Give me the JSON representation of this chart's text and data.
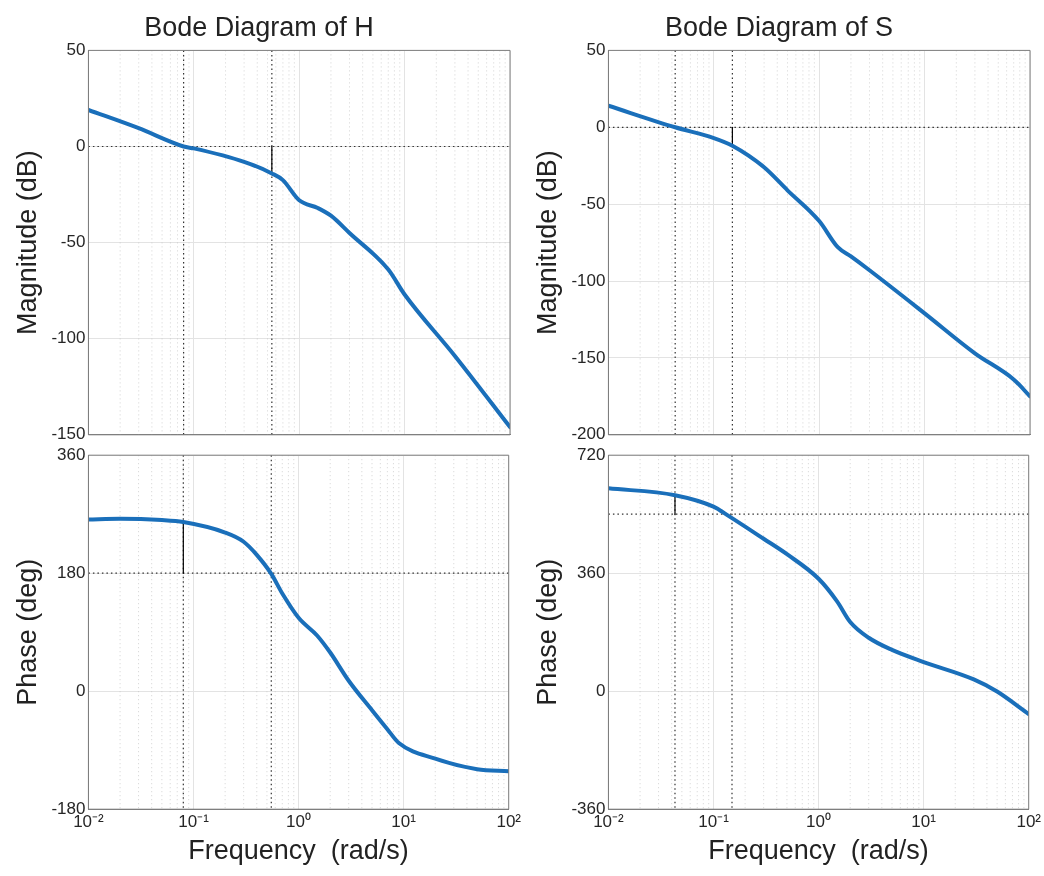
{
  "chart_data": [
    {
      "type": "line",
      "title": "Bode Diagram of H",
      "ylabel": "Magnitude (dB)",
      "log": "x",
      "grid": true,
      "marker": "none",
      "line_style": "solid",
      "tick_labels": "y",
      "xlim": [
        0.01,
        100
      ],
      "xticks": [
        {
          "value": 0.01,
          "label": null
        },
        {
          "value": 0.1,
          "label": null
        },
        {
          "value": 1,
          "label": null
        },
        {
          "value": 10,
          "label": null
        },
        {
          "value": 100,
          "label": null
        }
      ],
      "ylim": [
        -150,
        50
      ],
      "yticks": [
        -150,
        -100,
        -50,
        0,
        50
      ],
      "series": [
        {
          "color": "#1a6fba",
          "x": [
            0.01,
            0.03,
            0.08,
            0.1,
            0.3,
            0.55,
            0.7,
            1,
            1.5,
            2,
            3,
            7,
            10,
            30,
            100
          ],
          "values": [
            19,
            9.5,
            0,
            -1,
            -8,
            -14,
            -17.5,
            -28,
            -32,
            -36,
            -45,
            -64,
            -77,
            -109,
            -146
          ]
        },
        {
          "color": "#000000",
          "x": [
            0.55,
            0.55
          ],
          "values": [
            0,
            -14
          ]
        }
      ],
      "ref_lines": [
        {
          "axis": "y",
          "value": 0,
          "line_style": "dotted",
          "color": "#333333"
        },
        {
          "axis": "x",
          "value": 0.08,
          "line_style": "dotted",
          "color": "#333333"
        },
        {
          "axis": "x",
          "value": 0.55,
          "line_style": "dotted",
          "color": "#333333"
        }
      ]
    },
    {
      "type": "line",
      "title": "Bode Diagram of S",
      "ylabel": "Magnitude (dB)",
      "log": "x",
      "grid": true,
      "marker": "none",
      "line_style": "solid",
      "tick_labels": "y",
      "xlim": [
        0.01,
        100
      ],
      "xticks": [
        {
          "value": 0.01,
          "label": null
        },
        {
          "value": 0.1,
          "label": null
        },
        {
          "value": 1,
          "label": null
        },
        {
          "value": 10,
          "label": null
        },
        {
          "value": 100,
          "label": null
        }
      ],
      "ylim": [
        -200,
        50
      ],
      "yticks": [
        -200,
        -150,
        -100,
        -50,
        0,
        50
      ],
      "series": [
        {
          "color": "#1a6fba",
          "x": [
            0.01,
            0.043,
            0.1,
            0.15,
            0.3,
            0.5,
            1,
            1.5,
            2,
            3,
            10,
            30,
            70,
            100
          ],
          "values": [
            14,
            0,
            -7,
            -12,
            -26,
            -41,
            -61,
            -78,
            -84,
            -93,
            -121,
            -147,
            -164,
            -175
          ]
        },
        {
          "color": "#000000",
          "x": [
            0.15,
            0.15
          ],
          "values": [
            0,
            -12
          ]
        }
      ],
      "ref_lines": [
        {
          "axis": "y",
          "value": 0,
          "line_style": "dotted",
          "color": "#333333"
        },
        {
          "axis": "x",
          "value": 0.043,
          "line_style": "dotted",
          "color": "#333333"
        },
        {
          "axis": "x",
          "value": 0.15,
          "line_style": "dotted",
          "color": "#333333"
        }
      ]
    },
    {
      "type": "line",
      "xlabel": "Frequency  (rad/s)",
      "ylabel": "Phase (deg)",
      "log": "x",
      "grid": true,
      "marker": "none",
      "line_style": "solid",
      "xlim": [
        0.01,
        100
      ],
      "xticks": [
        {
          "value": 0.01,
          "label": "10⁻²"
        },
        {
          "value": 0.1,
          "label": "10⁻¹"
        },
        {
          "value": 1,
          "label": "10⁰"
        },
        {
          "value": 10,
          "label": "10¹"
        },
        {
          "value": 100,
          "label": "10²"
        }
      ],
      "ylim": [
        -180,
        360
      ],
      "yticks": [
        -180,
        0,
        180,
        360
      ],
      "series": [
        {
          "color": "#1a6fba",
          "x": [
            0.01,
            0.02,
            0.05,
            0.08,
            0.2,
            0.3,
            0.4,
            0.55,
            0.7,
            1,
            1.5,
            2,
            3,
            5,
            7,
            9,
            20,
            50,
            100
          ],
          "values": [
            262,
            263,
            261,
            258,
            242,
            228,
            208,
            179,
            149,
            112,
            85,
            59,
            16,
            -29,
            -58,
            -79,
            -103,
            -119,
            -122
          ]
        },
        {
          "color": "#000000",
          "x": [
            0.08,
            0.08
          ],
          "values": [
            180,
            258
          ]
        }
      ],
      "ref_lines": [
        {
          "axis": "y",
          "value": 180,
          "line_style": "dotted",
          "color": "#333333"
        },
        {
          "axis": "x",
          "value": 0.08,
          "line_style": "dotted",
          "color": "#333333"
        },
        {
          "axis": "x",
          "value": 0.55,
          "line_style": "dotted",
          "color": "#333333"
        }
      ]
    },
    {
      "type": "line",
      "xlabel": "Frequency  (rad/s)",
      "ylabel": "Phase (deg)",
      "log": "x",
      "grid": true,
      "marker": "none",
      "line_style": "solid",
      "xlim": [
        0.01,
        100
      ],
      "xticks": [
        {
          "value": 0.01,
          "label": "10⁻²"
        },
        {
          "value": 0.1,
          "label": "10⁻¹"
        },
        {
          "value": 1,
          "label": "10⁰"
        },
        {
          "value": 10,
          "label": "10¹"
        },
        {
          "value": 100,
          "label": "10²"
        }
      ],
      "ylim": [
        -360,
        720
      ],
      "yticks": [
        -360,
        0,
        360,
        720
      ],
      "series": [
        {
          "color": "#1a6fba",
          "x": [
            0.01,
            0.043,
            0.1,
            0.14,
            0.3,
            0.5,
            1,
            1.5,
            2,
            3,
            5,
            10,
            30,
            50,
            100
          ],
          "values": [
            619,
            598,
            563,
            534,
            465,
            418,
            343,
            274,
            211,
            163,
            126,
            89,
            36,
            -1,
            -70
          ]
        },
        {
          "color": "#000000",
          "x": [
            0.043,
            0.043
          ],
          "values": [
            540,
            598
          ]
        }
      ],
      "ref_lines": [
        {
          "axis": "y",
          "value": 540,
          "line_style": "dotted",
          "color": "#333333"
        },
        {
          "axis": "x",
          "value": 0.043,
          "line_style": "dotted",
          "color": "#333333"
        },
        {
          "axis": "x",
          "value": 0.15,
          "line_style": "dotted",
          "color": "#333333"
        }
      ]
    }
  ]
}
